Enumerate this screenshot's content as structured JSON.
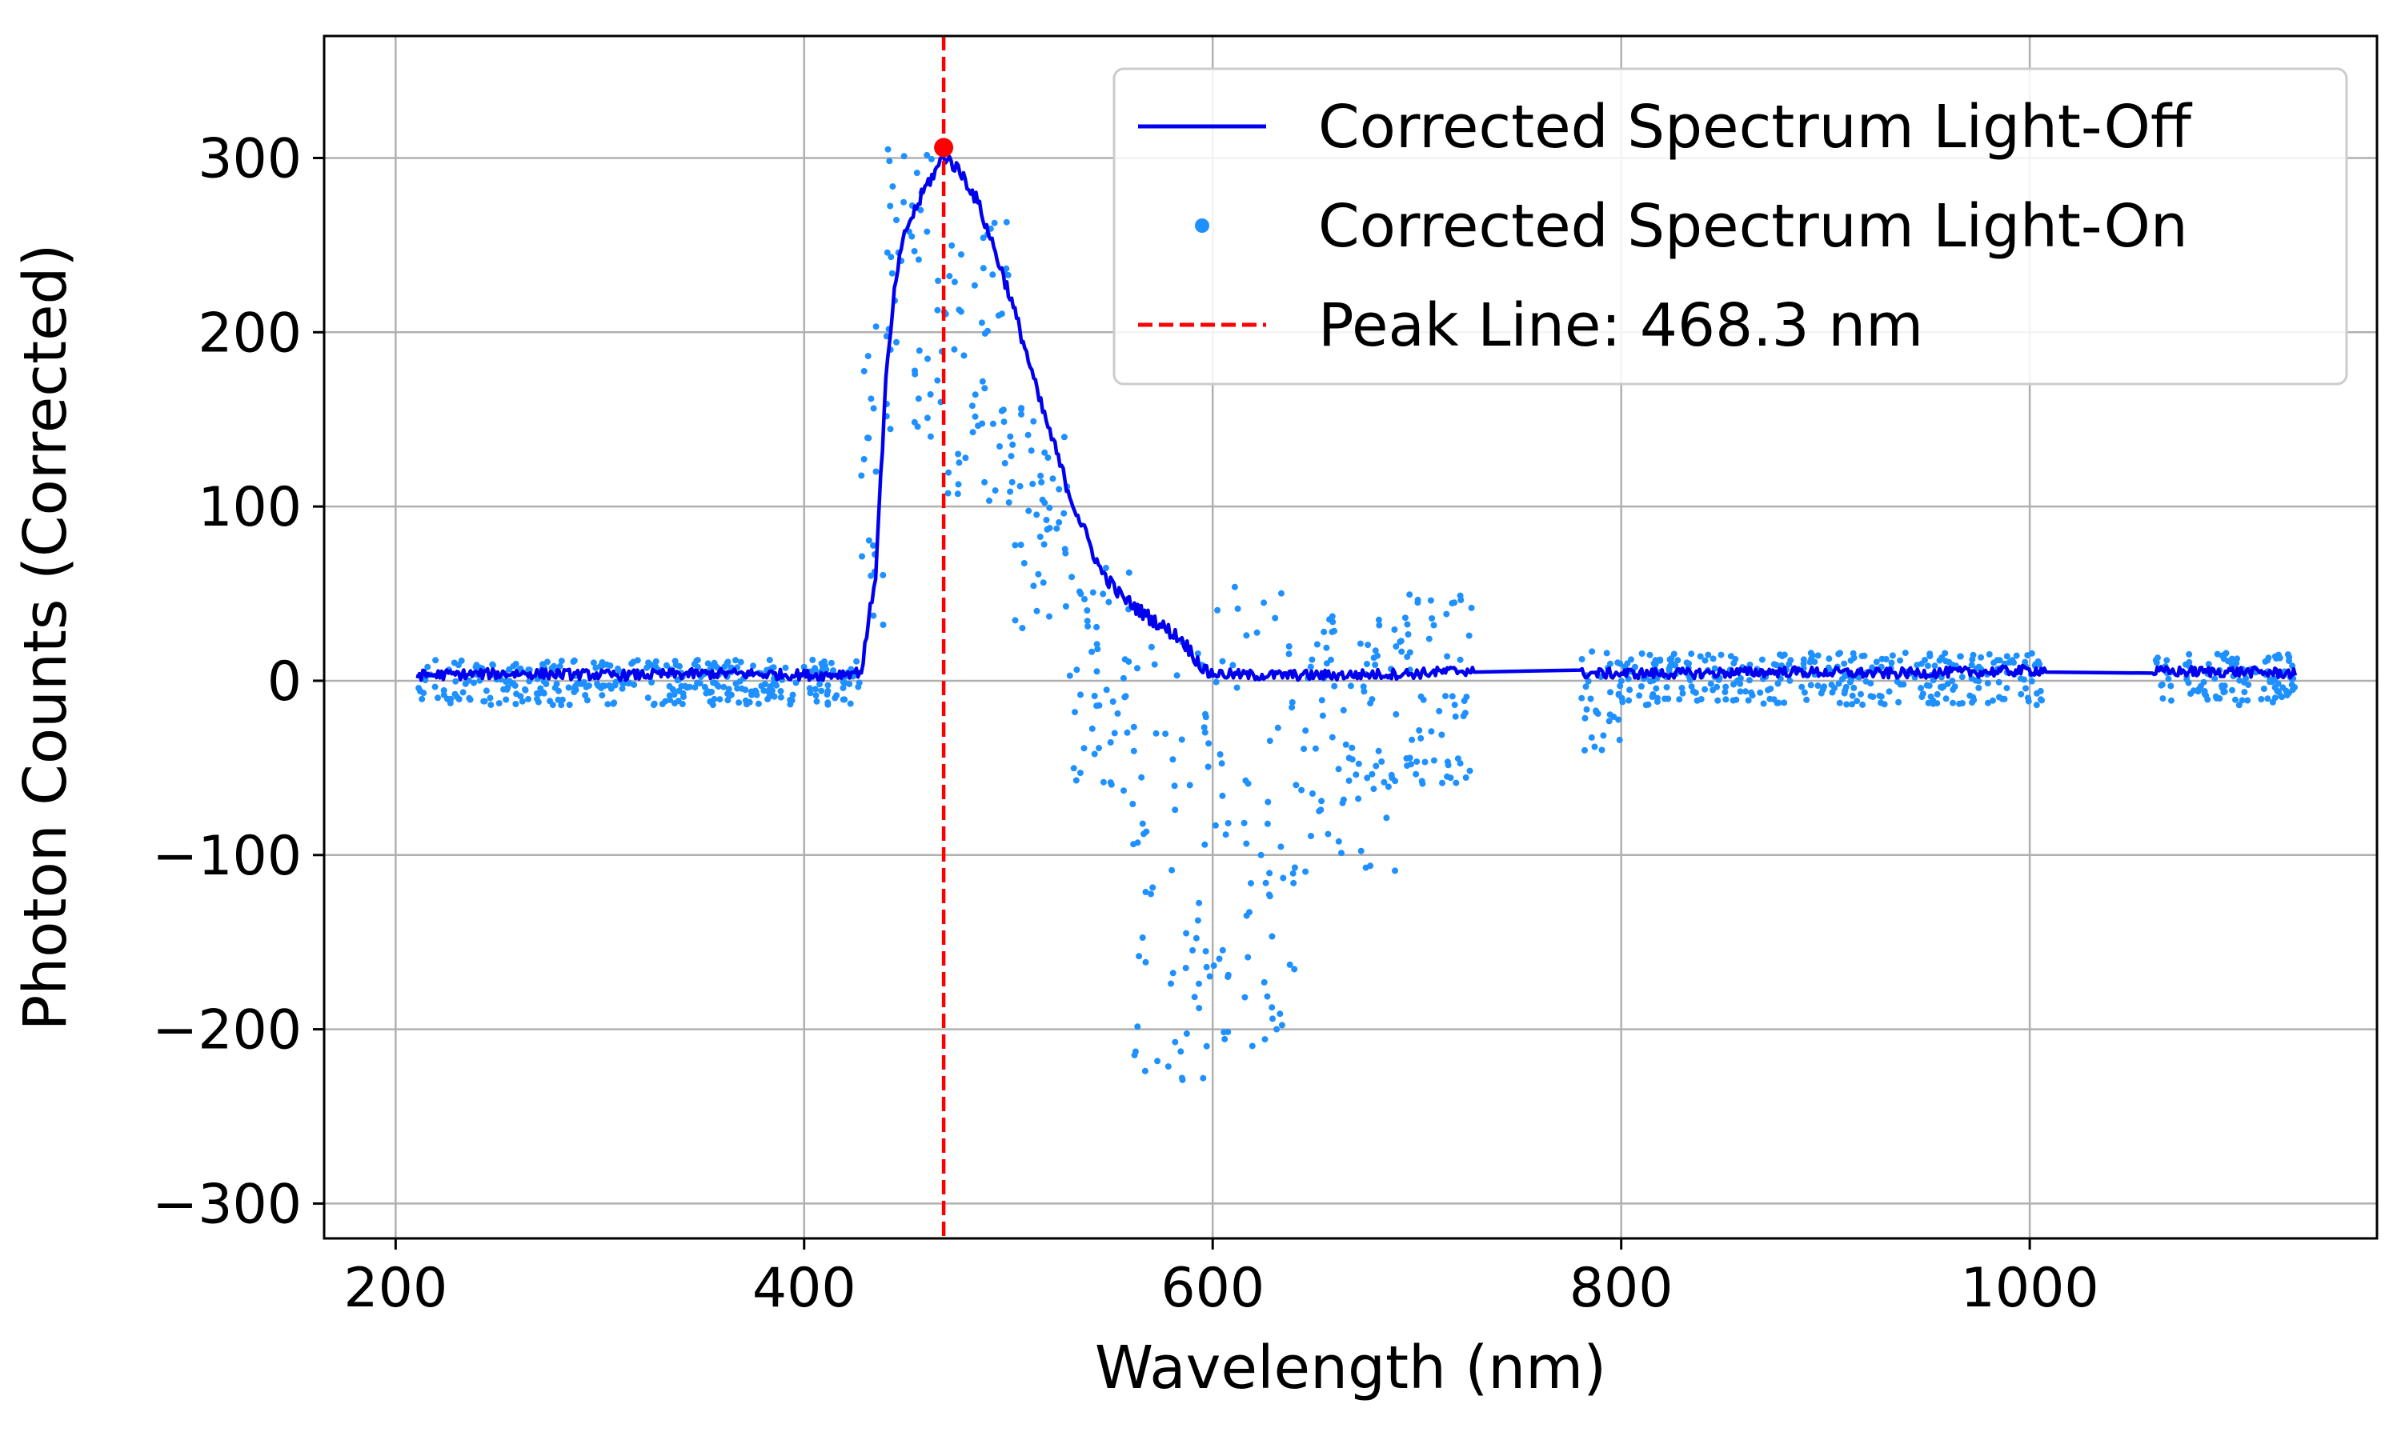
{
  "chart_data": {
    "type": "line",
    "title": "",
    "xlabel": "Wavelength (nm)",
    "ylabel": "Photon Counts (Corrected)",
    "xlim": [
      165,
      1170
    ],
    "ylim": [
      -320,
      370
    ],
    "xticks": [
      200,
      400,
      600,
      800,
      1000
    ],
    "yticks": [
      -300,
      -200,
      -100,
      0,
      100,
      200,
      300
    ],
    "xtick_labels": [
      "200",
      "400",
      "600",
      "800",
      "1000"
    ],
    "ytick_labels": [
      "−300",
      "−200",
      "−100",
      "0",
      "100",
      "200",
      "300"
    ],
    "grid": true,
    "legend_position": "top-right",
    "series": [
      {
        "name": "Corrected Spectrum Light-Off",
        "kind": "line",
        "color": "#0000ee",
        "points": [
          [
            210,
            2
          ],
          [
            260,
            3
          ],
          [
            310,
            2
          ],
          [
            360,
            3
          ],
          [
            410,
            2
          ],
          [
            428,
            4
          ],
          [
            435,
            60
          ],
          [
            440,
            170
          ],
          [
            445,
            230
          ],
          [
            450,
            258
          ],
          [
            455,
            270
          ],
          [
            460,
            283
          ],
          [
            465,
            292
          ],
          [
            468.3,
            300
          ],
          [
            472,
            296
          ],
          [
            478,
            288
          ],
          [
            485,
            273
          ],
          [
            492,
            250
          ],
          [
            500,
            222
          ],
          [
            508,
            190
          ],
          [
            515,
            160
          ],
          [
            522,
            135
          ],
          [
            530,
            105
          ],
          [
            538,
            82
          ],
          [
            545,
            62
          ],
          [
            555,
            47
          ],
          [
            565,
            38
          ],
          [
            575,
            30
          ],
          [
            585,
            22
          ],
          [
            590,
            14
          ],
          [
            597,
            3
          ],
          [
            620,
            2
          ],
          [
            660,
            2
          ],
          [
            700,
            3
          ],
          [
            728,
            5
          ],
          [
            780,
            3
          ],
          [
            830,
            3
          ],
          [
            880,
            4
          ],
          [
            930,
            3
          ],
          [
            980,
            4
          ],
          [
            1008,
            5
          ],
          [
            1060,
            4
          ],
          [
            1100,
            4
          ],
          [
            1130,
            3
          ]
        ]
      },
      {
        "name": "Corrected Spectrum Light-On",
        "kind": "scatter",
        "color": "#1e90ff",
        "bands": [
          {
            "x": [
              210,
              428
            ],
            "lo": -14,
            "hi": 12
          },
          {
            "x": [
              428,
              440
            ],
            "lo": 30,
            "hi": 215
          },
          {
            "x": [
              440,
              470
            ],
            "lo": 140,
            "hi": 320
          },
          {
            "x": [
              470,
              500
            ],
            "lo": 100,
            "hi": 270
          },
          {
            "x": [
              500,
              530
            ],
            "lo": 30,
            "hi": 160
          },
          {
            "x": [
              530,
              560
            ],
            "lo": -70,
            "hi": 70
          },
          {
            "x": [
              560,
              600
            ],
            "lo": -230,
            "hi": 30
          },
          {
            "x": [
              600,
              640
            ],
            "lo": -210,
            "hi": 55
          },
          {
            "x": [
              640,
              690
            ],
            "lo": -110,
            "hi": 50
          },
          {
            "x": [
              690,
              728
            ],
            "lo": -60,
            "hi": 50
          },
          {
            "x": [
              780,
              800
            ],
            "lo": -40,
            "hi": 20
          },
          {
            "x": [
              800,
              1008
            ],
            "lo": -14,
            "hi": 16
          },
          {
            "x": [
              1060,
              1130
            ],
            "lo": -14,
            "hi": 16
          }
        ]
      },
      {
        "name": "Peak Line: 468.3 nm",
        "kind": "vline",
        "color": "#ff0000",
        "x": 468.3
      }
    ],
    "peak_marker": {
      "x": 468.3,
      "y": 306,
      "color": "#ff0000"
    }
  }
}
